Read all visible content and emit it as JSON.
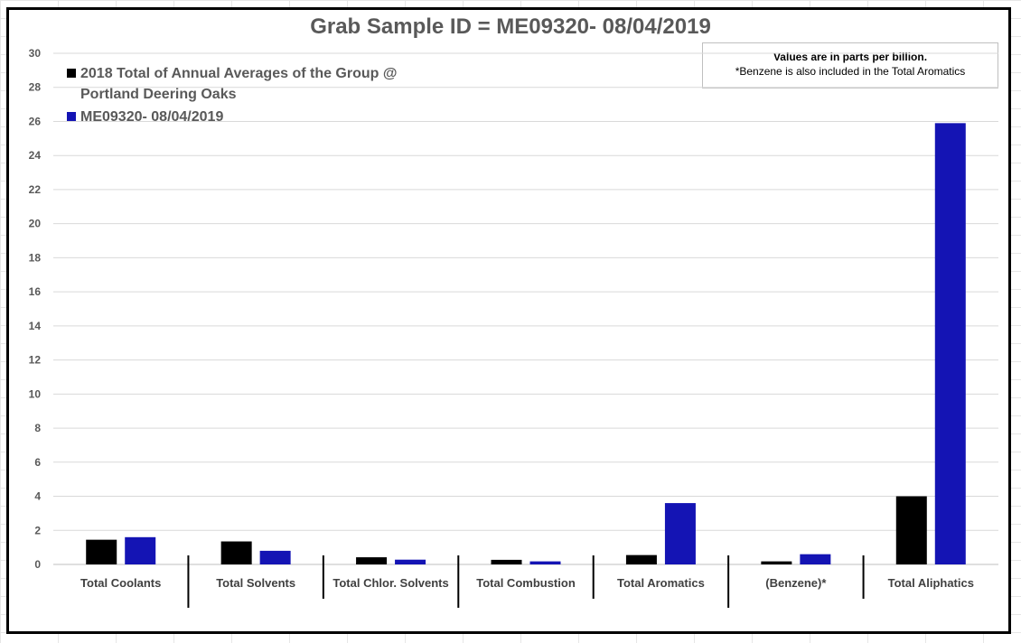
{
  "chart_data": {
    "type": "bar",
    "title": "Grab Sample ID = ME09320- 08/04/2019",
    "xlabel": "",
    "ylabel": "",
    "ylim": [
      0,
      30
    ],
    "y_ticks": [
      0,
      2,
      4,
      6,
      8,
      10,
      12,
      14,
      16,
      18,
      20,
      22,
      24,
      26,
      28,
      30
    ],
    "categories": [
      "Total Coolants",
      "Total Solvents",
      "Total Chlor. Solvents",
      "Total Combustion",
      "Total Aromatics",
      "(Benzene)*",
      "Total Aliphatics"
    ],
    "series": [
      {
        "name": "2018 Total of Annual Averages of the Group @ Portland Deering Oaks",
        "color": "#000000",
        "values": [
          1.45,
          1.35,
          0.42,
          0.27,
          0.55,
          0.18,
          4.0
        ]
      },
      {
        "name": "ME09320- 08/04/2019",
        "color": "#1414b4",
        "values": [
          1.6,
          0.8,
          0.28,
          0.18,
          3.6,
          0.6,
          25.9
        ]
      }
    ],
    "legend": {
      "position": "top-left",
      "entries": [
        {
          "line1": "2018 Total of Annual Averages of the Group @",
          "line2": "Portland Deering Oaks",
          "color": "#000000"
        },
        {
          "line1": "ME09320- 08/04/2019",
          "line2": "",
          "color": "#1414b4"
        }
      ]
    },
    "annotation": {
      "line1": "Values are in parts per billion.",
      "line2": "*Benzene is also included in the Total Aromatics"
    },
    "grid": true
  }
}
